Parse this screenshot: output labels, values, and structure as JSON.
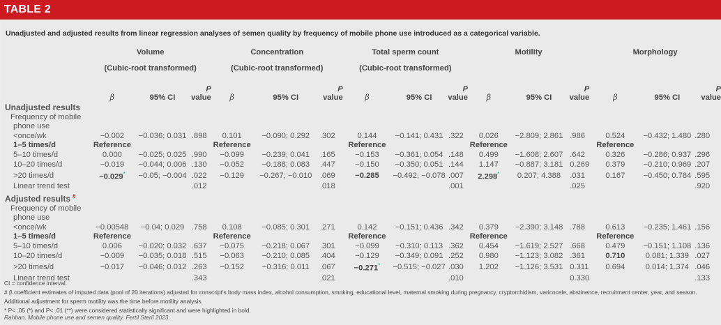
{
  "table_label": "TABLE 2",
  "caption": "Unadjusted and adjusted results from linear regression analyses of semen quality by frequency of mobile phone use introduced as a categorical variable.",
  "groups": [
    {
      "name": "Volume",
      "sub": "(Cubic-root transformed)"
    },
    {
      "name": "Concentration",
      "sub": "(Cubic-root transformed)"
    },
    {
      "name": "Total sperm count",
      "sub": "(Cubic-root transformed)"
    },
    {
      "name": "Motility",
      "sub": ""
    },
    {
      "name": "Morphology",
      "sub": ""
    }
  ],
  "col_headers": {
    "beta": "β",
    "ci": "95% CI",
    "p_top": "P",
    "p_bottom": "value"
  },
  "rows": [
    {
      "type": "section",
      "label": "Unadjusted results"
    },
    {
      "type": "label",
      "label": "Frequency of mobile",
      "indent": 1
    },
    {
      "type": "label",
      "label": "phone use",
      "indent": 2
    },
    {
      "label": "<once/wk",
      "indent": 2,
      "cells": [
        "−0.002",
        "−0.036; 0.031",
        ".898",
        "0.101",
        "−0.090; 0.292",
        ".302",
        "0.144",
        "−0.141; 0.431",
        ".322",
        "0.026",
        "−2.809; 2.861",
        ".986",
        "0.524",
        "−0.432; 1.480",
        ".280"
      ]
    },
    {
      "label": "1–5 times/d",
      "indent": 2,
      "bold_label": true,
      "cells": [
        "Reference",
        "",
        "",
        "Reference",
        "",
        "",
        "Reference",
        "",
        "",
        "Reference",
        "",
        "",
        "Reference",
        "",
        ""
      ],
      "bold": [
        0,
        3,
        6,
        9,
        12
      ]
    },
    {
      "label": "5–10 times/d",
      "indent": 2,
      "cells": [
        "0.000",
        "−0.025; 0.025",
        ".990",
        "−0.099",
        "−0.239; 0.041",
        ".165",
        "−0.153",
        "−0.361; 0.054",
        ".148",
        "0.499",
        "−1.608; 2.607",
        ".642",
        "0.326",
        "−0.286; 0.937",
        ".296"
      ]
    },
    {
      "label": "10–20 times/d",
      "indent": 2,
      "cells": [
        "−0.019",
        "−0.044; 0.006",
        ".130",
        "−0.052",
        "−0.188; 0.083",
        ".447",
        "−0.150",
        "−0.350; 0.051",
        ".144",
        "1.147",
        "−0.887; 3.181",
        "0.269",
        "0.379",
        "−0.210; 0.969",
        ".207"
      ]
    },
    {
      "label": ">20 times/d",
      "indent": 2,
      "cells": [
        "−0.029",
        "−0.05; −0.004",
        ".022",
        "−0.129",
        "−0.267; −0.010",
        ".069",
        "−0.285",
        "−0.492; −0.078",
        ".007",
        "2.298",
        "0.207; 4.388",
        ".031",
        "0.167",
        "−0.450; 0.784",
        ".595"
      ],
      "bold": [
        0,
        6,
        9
      ],
      "star": {
        "0": "*",
        "9": "*"
      }
    },
    {
      "label": "Linear trend test",
      "indent": 2,
      "cells": [
        "",
        "",
        ".012",
        "",
        "",
        ".018",
        "",
        "",
        ".001",
        "",
        "",
        ".025",
        "",
        "",
        ".920"
      ]
    },
    {
      "type": "section",
      "label": "Adjusted results",
      "mark": "#"
    },
    {
      "type": "label",
      "label": "Frequency of mobile",
      "indent": 1
    },
    {
      "type": "label",
      "label": "phone use",
      "indent": 2
    },
    {
      "label": "<once/wk",
      "indent": 2,
      "cells": [
        "−0.00548",
        "−0.04; 0.029",
        ".758",
        "0.108",
        "−0.085; 0.301",
        ".271",
        "0.142",
        "−0.151; 0.436",
        ".342",
        "0.379",
        "−2.390; 3.148",
        ".788",
        "0.613",
        "−0.235; 1.461",
        ".156"
      ]
    },
    {
      "label": "1–5 times/d",
      "indent": 2,
      "bold_label": true,
      "cells": [
        "Reference",
        "",
        "",
        "Reference",
        "",
        "",
        "Reference",
        "",
        "",
        "Reference",
        "",
        "",
        "Reference",
        "",
        ""
      ],
      "bold": [
        0,
        3,
        6,
        9,
        12
      ]
    },
    {
      "label": "5–10 times/d",
      "indent": 2,
      "cells": [
        "0.006",
        "−0.020; 0.032",
        ".637",
        "−0.075",
        "−0.218; 0.067",
        ".301",
        "−0.099",
        "−0.310; 0.113",
        ".362",
        "0.454",
        "−1.619; 2.527",
        ".668",
        "0.479",
        "−0.151; 1.108",
        ".136"
      ]
    },
    {
      "label": "10–20 times/d",
      "indent": 2,
      "cells": [
        "−0.009",
        "−0.035; 0.018",
        ".515",
        "−0.063",
        "−0.210; 0.085",
        ".404",
        "−0.129",
        "−0.349; 0.091",
        ".252",
        "0.980",
        "−1.123; 3.082",
        ".361",
        "0.710",
        "0.081; 1.339",
        ".027"
      ],
      "bold": [
        12
      ]
    },
    {
      "label": ">20 times/d",
      "indent": 2,
      "cells": [
        "−0.017",
        "−0.046; 0.012",
        ".263",
        "−0.152",
        "−0.316; 0.011",
        ".067",
        "−0.271",
        "−0.515; −0.027",
        ".030",
        "1.202",
        "−1.126; 3.531",
        "0.311",
        "0.694",
        "0.014; 1.374",
        ".046"
      ],
      "bold": [
        6
      ],
      "star": {
        "6": "*"
      }
    },
    {
      "label": "Linear trend test",
      "indent": 2,
      "cells": [
        "",
        "",
        ".343",
        "",
        "",
        ".021",
        "",
        "",
        ".010",
        "",
        "",
        "0.330",
        "",
        "",
        ".133"
      ]
    }
  ],
  "footnotes": [
    "CI = confidence interval.",
    "# β coefficient estimates of imputed data (pool of 20 iterations) adjusted for conscript's body mass index, alcohol consumption, smoking, educational level, maternal smoking during pregnancy, cryptorchidism, varicocele, abstinence, recruitment center, year, and season.",
    "Additional adjustment for sperm motility was the time before motility analysis.",
    "* P< .05 (*) and P< .01 (**) were considered statistically significant and were highlighted in bold."
  ],
  "citation": "Rahban. Mobile phone use and semen quality. Fertil Steril 2023.",
  "colors": {
    "header_bar": "#cc1a20",
    "significance_star": "#2a9a8f"
  }
}
